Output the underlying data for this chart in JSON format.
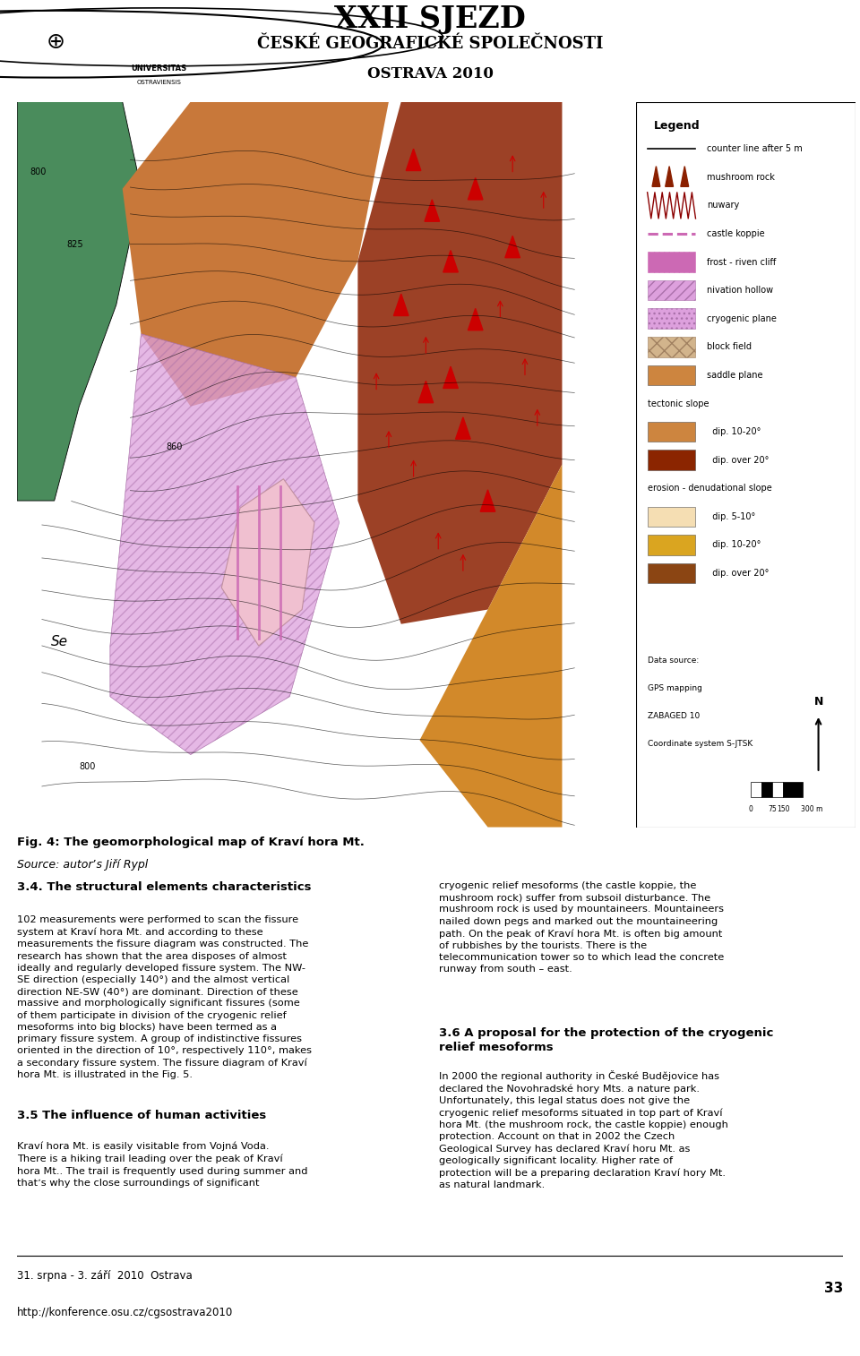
{
  "figsize": [
    9.6,
    15.14
  ],
  "dpi": 100,
  "bg_color": "#ffffff",
  "header_title": "XXII SJEZD",
  "header_line2": "ČESKÉ GEOGRAFICKÉ SPOLEČNOSTI",
  "header_line3": "OSTRAVA 2010",
  "universitas": "UNIVERSITAS",
  "ostraviensis": "OSTRAVIENSIS",
  "map_caption": "Fig. 4: The geomorphological map of Kraví hora Mt.",
  "map_source": "Source: autorʼs Jiří Rypl",
  "section_title1": "3.4. The structural elements characteristics",
  "section_text1a": "102 measurements were performed to scan the fissure\nsystem at Kraví hora Mt. and according to these\nmeasurements the fissure diagram was constructed. The\nresearch has shown that the area disposes of almost\nideally and regularly developed fissure system. The NW-\nSE direction (especially 140°) and the almost vertical\ndirection NE-SW (40°) are dominant. Direction of these\nmassive and morphologically significant fissures (some\nof them participate in division of the cryogenic relief\nmesoforms into big blocks) have been termed as a\nprimary fissure system. A group of indistinctive fissures\noriented in the direction of 10°, respectively 110°, makes\na secondary fissure system. The fissure diagram of Kraví\nhora Mt. is illustrated in the Fig. 5.",
  "section_title2": "3.5 The influence of human activities",
  "section_text2": "Kraví hora Mt. is easily visitable from Vojná Voda.\nThere is a hiking trail leading over the peak of Kraví\nhora Mt.. The trail is frequently used during summer and\nthatʼs why the close surroundings of significant",
  "right_text1": "cryogenic relief mesoforms (the castle koppie, the\nmushroom rock) suffer from subsoil disturbance. The\nmushroom rock is used by mountaineers. Mountaineers\nnailed down pegs and marked out the mountaineering\npath. On the peak of Kraví hora Mt. is often big amount\nof rubbishes by the tourists. There is the\ntelecommunication tower so to which lead the concrete\nrunway from south – east.",
  "section_title4": "3.6 A proposal for the protection of the cryogenic\nrelief mesoforms",
  "section_text4": "In 2000 the regional authority in České Budějovice has\ndeclared the Novohradské hory Mts. a nature park.\nUnfortunately, this legal status does not give the\ncryogenic relief mesoforms situated in top part of Kraví\nhora Mt. (the mushroom rock, the castle koppie) enough\nprotection. Account on that in 2002 the Czech\nGeological Survey has declared Kraví horu Mt. as\ngeologically significant locality. Higher rate of\nprotection will be a preparing declaration Kraví hory Mt.\nas natural landmark.",
  "footer_line1": "31. srpna - 3. září  2010  Ostrava",
  "footer_line2": "http://konference.osu.cz/cgsostrava2010",
  "footer_page": "33",
  "legend_title": "Legend",
  "data_source1": "Data source:",
  "data_source2": "GPS mapping",
  "data_source3": "ZABAGED 10",
  "data_source4": "Coordinate system S-JTSK",
  "scale_labels": [
    "0",
    "75",
    "150",
    "300 m"
  ],
  "north_label": "N",
  "elev_labels": [
    "800",
    "825",
    "860",
    "800"
  ],
  "se_label": "Se",
  "colors": {
    "green": "#4a8c5c",
    "light_orange": "#e8b870",
    "dark_orange": "#c8783a",
    "pink": "#dda0dd",
    "dark_red": "#8B2000",
    "right_orange": "#d2892a",
    "center_pink": "#f0c0d0",
    "pink_edge": "#c090a0",
    "pink_hatch_edge": "#aa70aa",
    "contour": "#000000",
    "red_marker": "#cc0000",
    "koppie_line": "#cc69b4",
    "legend_border": "#000000",
    "leg_line": "#000000",
    "leg_tri": "#8B2000",
    "leg_zz": "#8B0000",
    "leg_dashed": "#cc69b4",
    "leg_hatch_v": "#cc69b4",
    "leg_fill_h": "#dda0dd",
    "leg_fill_d": "#dda0dd",
    "leg_fill_x": "#d2b48c",
    "leg_saddle": "#cd853f",
    "leg_tec1": "#cd853f",
    "leg_tec2": "#8B2500",
    "leg_ero1": "#f5deb3",
    "leg_ero2": "#daa520",
    "leg_ero3": "#8B4513"
  }
}
